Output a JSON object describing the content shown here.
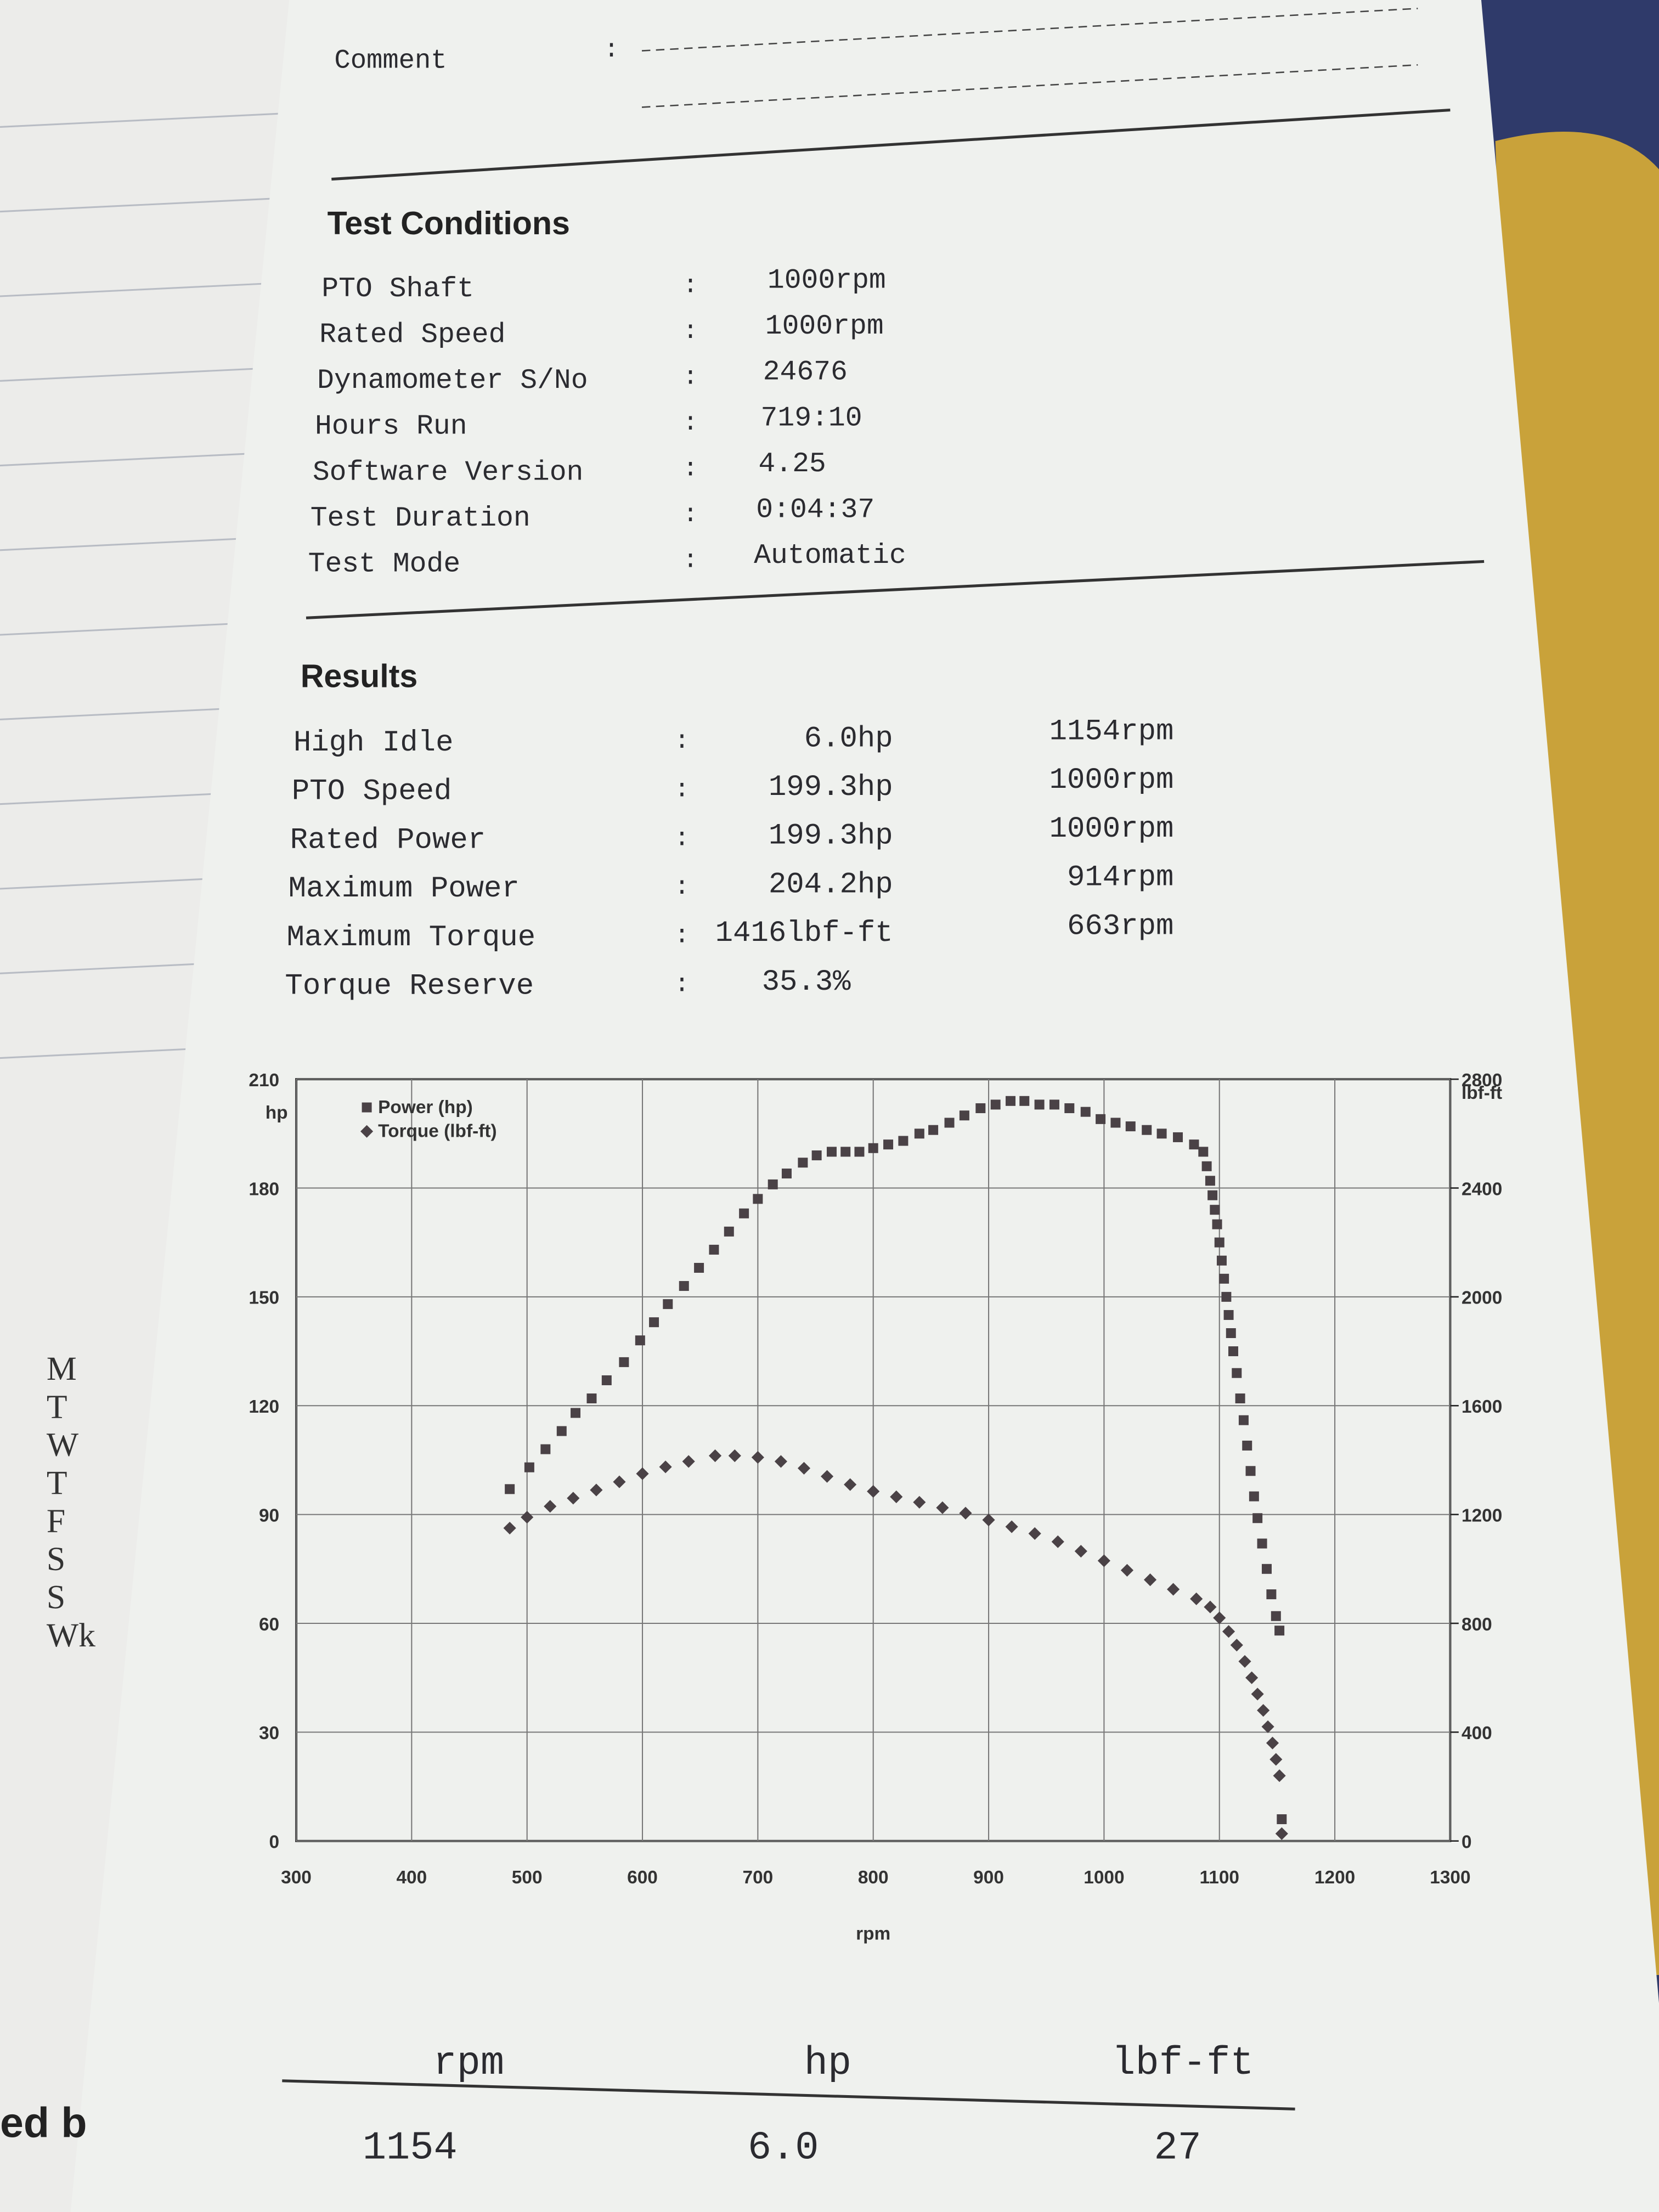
{
  "comment": {
    "label": "Comment",
    "separator": ":"
  },
  "test_conditions": {
    "title": "Test Conditions",
    "rows": [
      [
        "PTO Shaft",
        "1000rpm"
      ],
      [
        "Rated Speed",
        "1000rpm"
      ],
      [
        "Dynamometer S/No",
        "24676"
      ],
      [
        "Hours Run",
        "719:10"
      ],
      [
        "Software Version",
        "4.25"
      ],
      [
        "Test Duration",
        "0:04:37"
      ],
      [
        "Test Mode",
        "Automatic"
      ]
    ]
  },
  "results": {
    "title": "Results",
    "rows": [
      [
        "High Idle",
        "6.0hp",
        "1154rpm"
      ],
      [
        "PTO Speed",
        "199.3hp",
        "1000rpm"
      ],
      [
        "Rated Power",
        "199.3hp",
        "1000rpm"
      ],
      [
        "Maximum Power",
        "204.2hp",
        "914rpm"
      ],
      [
        "Maximum Torque",
        "1416lbf-ft",
        "663rpm"
      ],
      [
        "Torque Reserve",
        "35.3%"
      ]
    ]
  },
  "chart_data": {
    "type": "scatter",
    "x_label": "rpm",
    "y_label": "hp",
    "y2_label": "lbf-ft",
    "xlim": [
      300,
      1300
    ],
    "xticks": [
      300,
      400,
      500,
      600,
      700,
      800,
      900,
      1000,
      1100,
      1200,
      1300
    ],
    "ylim": [
      0,
      210
    ],
    "yticks": [
      0,
      30,
      60,
      90,
      120,
      150,
      180,
      210
    ],
    "y2lim": [
      0,
      2800
    ],
    "y2ticks": [
      0,
      400,
      800,
      1200,
      1600,
      2000,
      2400,
      2800
    ],
    "grid": true,
    "legend": "top-left",
    "series": [
      {
        "name": "Power (hp)",
        "color": "#4a4246",
        "marker": "square",
        "x": [
          485,
          502,
          516,
          530,
          542,
          556,
          569,
          584,
          598,
          610,
          622,
          636,
          649,
          662,
          675,
          688,
          700,
          713,
          725,
          739,
          751,
          764,
          776,
          788,
          800,
          813,
          826,
          840,
          852,
          866,
          879,
          893,
          906,
          919,
          931,
          944,
          957,
          970,
          984,
          997,
          1010,
          1023,
          1037,
          1050,
          1064,
          1078,
          1086,
          1089,
          1092,
          1094,
          1096,
          1098,
          1100,
          1102,
          1104,
          1106,
          1108,
          1110,
          1112,
          1115,
          1118,
          1121,
          1124,
          1127,
          1130,
          1133,
          1137,
          1141,
          1145,
          1149,
          1152,
          1154
        ],
        "values": [
          97,
          103,
          108,
          113,
          118,
          122,
          127,
          132,
          138,
          143,
          148,
          153,
          158,
          163,
          168,
          173,
          177,
          181,
          184,
          187,
          189,
          190,
          190,
          190,
          191,
          192,
          193,
          195,
          196,
          198,
          200,
          202,
          203,
          204,
          204,
          203,
          203,
          202,
          201,
          199,
          198,
          197,
          196,
          195,
          194,
          192,
          190,
          186,
          182,
          178,
          174,
          170,
          165,
          160,
          155,
          150,
          145,
          140,
          135,
          129,
          122,
          116,
          109,
          102,
          95,
          89,
          82,
          75,
          68,
          62,
          58,
          6.0
        ]
      },
      {
        "name": "Torque (lbf-ft)",
        "color": "#4a4246",
        "marker": "diamond",
        "axis": "y2",
        "x": [
          485,
          500,
          520,
          540,
          560,
          580,
          600,
          620,
          640,
          663,
          680,
          700,
          720,
          740,
          760,
          780,
          800,
          820,
          840,
          860,
          880,
          900,
          920,
          940,
          960,
          980,
          1000,
          1020,
          1040,
          1060,
          1080,
          1092,
          1100,
          1108,
          1115,
          1122,
          1128,
          1133,
          1138,
          1142,
          1146,
          1149,
          1152,
          1154
        ],
        "values": [
          1150,
          1190,
          1230,
          1260,
          1290,
          1320,
          1350,
          1375,
          1395,
          1416,
          1416,
          1410,
          1395,
          1370,
          1340,
          1310,
          1285,
          1265,
          1245,
          1225,
          1205,
          1180,
          1155,
          1130,
          1100,
          1065,
          1030,
          995,
          960,
          925,
          890,
          860,
          820,
          770,
          720,
          660,
          600,
          540,
          480,
          420,
          360,
          300,
          240,
          27
        ]
      }
    ]
  },
  "table": {
    "header": [
      "rpm",
      "hp",
      "lbf-ft"
    ],
    "rows": [
      [
        "1154",
        "6.0",
        "27"
      ]
    ]
  },
  "notebook": {
    "weekdays": [
      "M",
      "T",
      "W",
      "T",
      "F",
      "S",
      "S",
      "Wk"
    ],
    "fragment": "ed b"
  }
}
